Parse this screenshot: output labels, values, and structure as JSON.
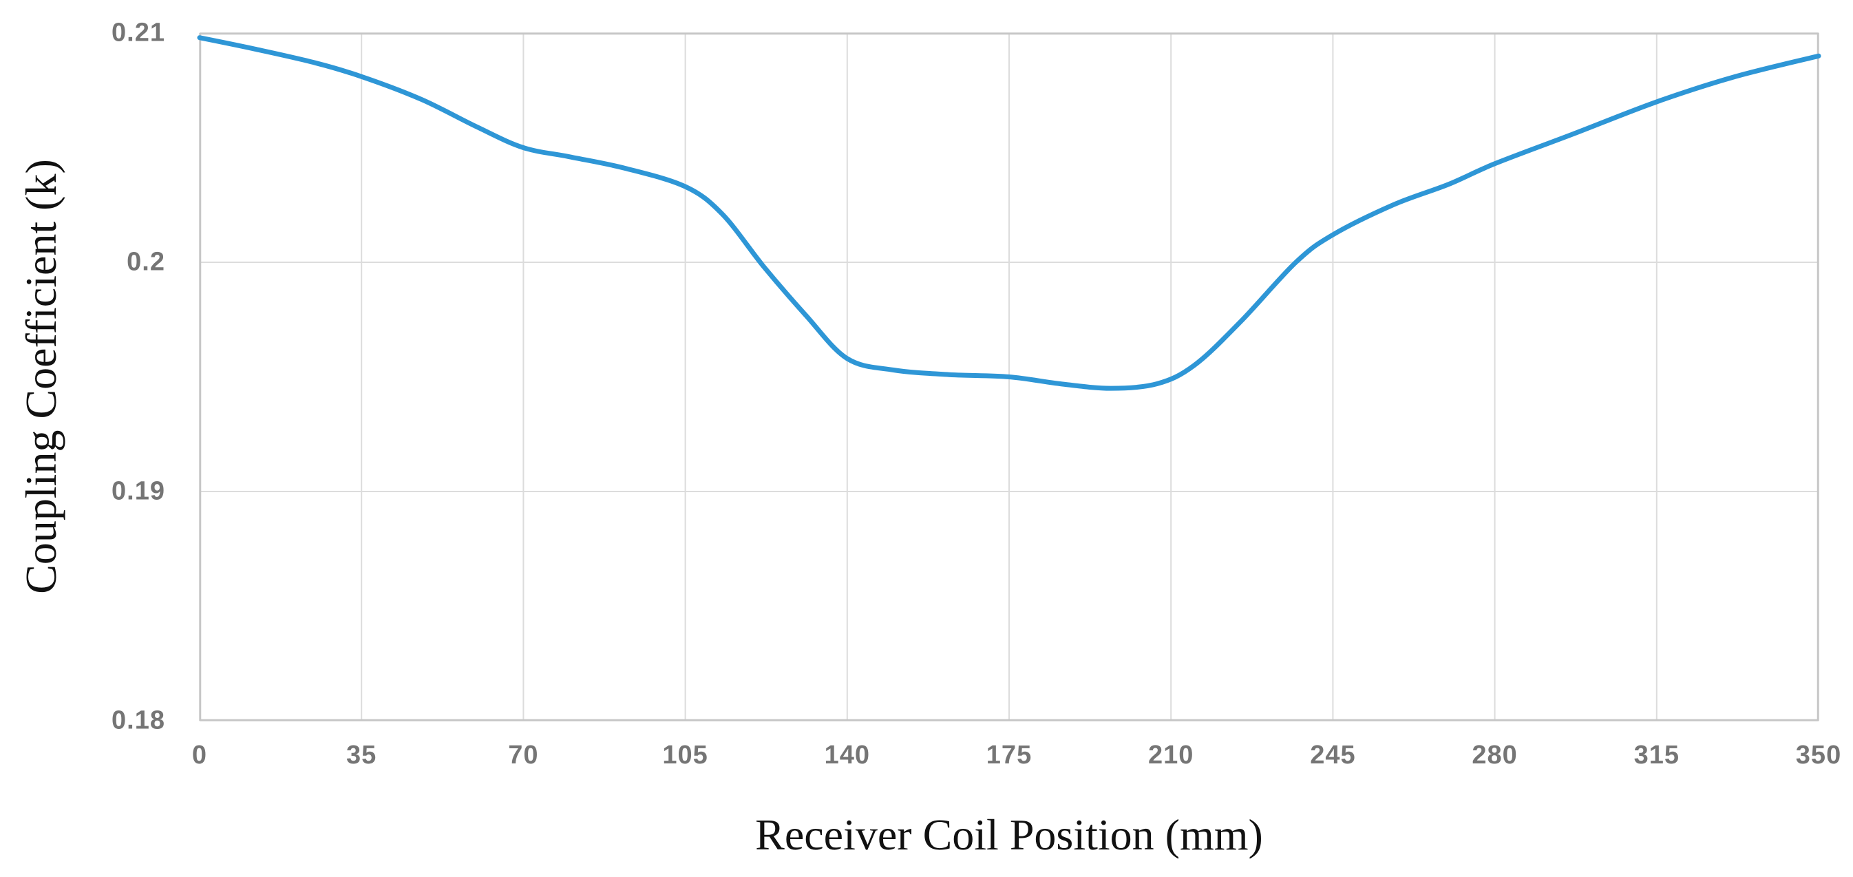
{
  "figure": {
    "background": "#ffffff"
  },
  "chart_data": {
    "type": "line",
    "title": "",
    "xlabel": "Receiver Coil Position (mm)",
    "ylabel": "Coupling Coefficient (k)",
    "xlim": [
      0,
      350
    ],
    "ylim": [
      0.18,
      0.21
    ],
    "x_ticks": [
      0,
      35,
      70,
      105,
      140,
      175,
      210,
      245,
      280,
      315,
      350
    ],
    "x_tick_labels": [
      "0",
      "35",
      "70",
      "105",
      "140",
      "175",
      "210",
      "245",
      "280",
      "315",
      "350"
    ],
    "y_ticks": [
      0.18,
      0.19,
      0.2,
      0.21
    ],
    "y_tick_labels": [
      "0.18",
      "0.19",
      "0.2",
      "0.21"
    ],
    "grid": true,
    "legend_position": "none",
    "colors": {
      "line": "#2e96d6",
      "gridline": "#dcdcdc",
      "plot_border": "#c6c6c6",
      "tick_label": "#757575",
      "axis_title": "#111111"
    },
    "series": [
      {
        "name": "coupling-coefficient",
        "color": "#2e96d6",
        "points": [
          [
            0,
            0.2098
          ],
          [
            12,
            0.2093
          ],
          [
            25,
            0.2087
          ],
          [
            35,
            0.2081
          ],
          [
            48,
            0.2071
          ],
          [
            60,
            0.2059
          ],
          [
            70,
            0.205
          ],
          [
            80,
            0.2046
          ],
          [
            92,
            0.2041
          ],
          [
            105,
            0.2033
          ],
          [
            113,
            0.2021
          ],
          [
            122,
            0.1998
          ],
          [
            131,
            0.1977
          ],
          [
            140,
            0.1958
          ],
          [
            150,
            0.1953
          ],
          [
            162,
            0.1951
          ],
          [
            175,
            0.195
          ],
          [
            186,
            0.1947
          ],
          [
            197,
            0.1945
          ],
          [
            207,
            0.1947
          ],
          [
            215,
            0.1955
          ],
          [
            225,
            0.1974
          ],
          [
            237,
            0.2
          ],
          [
            245,
            0.2012
          ],
          [
            258,
            0.2025
          ],
          [
            270,
            0.2034
          ],
          [
            280,
            0.2043
          ],
          [
            297,
            0.2056
          ],
          [
            315,
            0.207
          ],
          [
            332,
            0.2081
          ],
          [
            350,
            0.209
          ]
        ]
      }
    ]
  }
}
